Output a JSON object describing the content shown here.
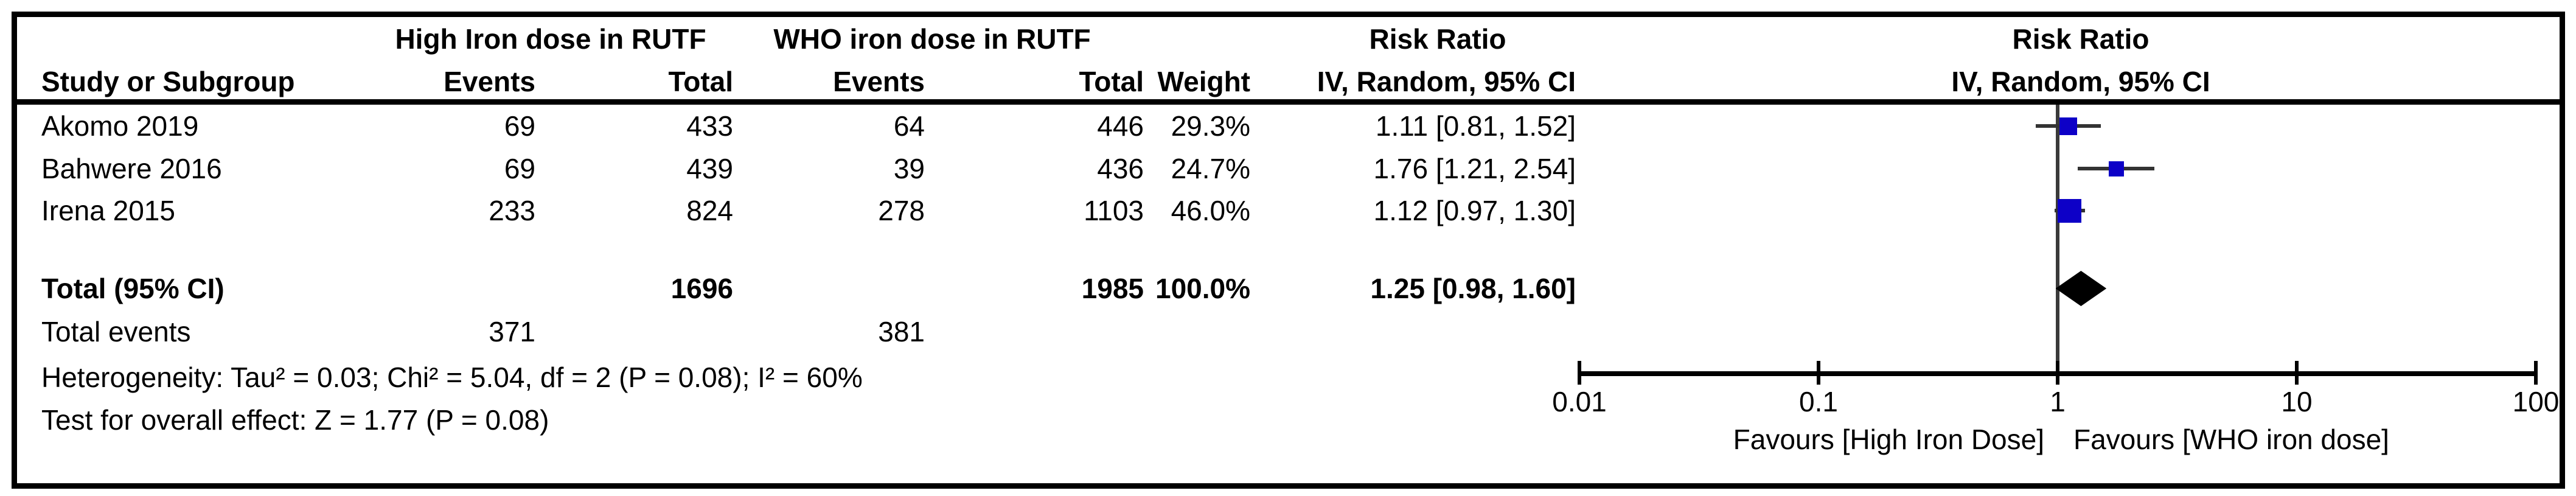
{
  "table": {
    "group1_header": "High Iron dose in RUTF",
    "group2_header": "WHO iron dose in RUTF",
    "effect_header_line1": "Risk Ratio",
    "effect_header_line2": "IV, Random, 95% CI",
    "plot_header_line1": "Risk Ratio",
    "plot_header_line2": "IV, Random, 95% CI",
    "columns": {
      "study": "Study or Subgroup",
      "events1": "Events",
      "total1": "Total",
      "events2": "Events",
      "total2": "Total",
      "weight": "Weight",
      "effect": "IV, Random, 95% CI"
    },
    "rows": [
      {
        "study": "Akomo 2019",
        "e1": "69",
        "t1": "433",
        "e2": "64",
        "t2": "446",
        "weight": "29.3%",
        "effect": "1.11 [0.81, 1.52]"
      },
      {
        "study": "Bahwere 2016",
        "e1": "69",
        "t1": "439",
        "e2": "39",
        "t2": "436",
        "weight": "24.7%",
        "effect": "1.76 [1.21, 2.54]"
      },
      {
        "study": "Irena 2015",
        "e1": "233",
        "t1": "824",
        "e2": "278",
        "t2": "1103",
        "weight": "46.0%",
        "effect": "1.12 [0.97, 1.30]"
      }
    ],
    "total_row": {
      "label": "Total (95% CI)",
      "t1": "1696",
      "t2": "1985",
      "weight": "100.0%",
      "effect": "1.25 [0.98, 1.60]"
    },
    "total_events": {
      "label": "Total events",
      "e1": "371",
      "e2": "381"
    },
    "heterogeneity": "Heterogeneity: Tau² = 0.03; Chi² = 5.04, df = 2 (P = 0.08); I² = 60%",
    "overall_effect": "Test for overall effect: Z = 1.77 (P = 0.08)"
  },
  "chart_data": {
    "type": "forest",
    "x_scale": "log10",
    "x_range": [
      0.01,
      100
    ],
    "axis_ticks": [
      0.01,
      0.1,
      1,
      10,
      100
    ],
    "null_line": 1,
    "studies": [
      {
        "name": "Akomo 2019",
        "rr": 1.11,
        "ci_low": 0.81,
        "ci_high": 1.52,
        "weight_pct": 29.3
      },
      {
        "name": "Bahwere 2016",
        "rr": 1.76,
        "ci_low": 1.21,
        "ci_high": 2.54,
        "weight_pct": 24.7
      },
      {
        "name": "Irena 2015",
        "rr": 1.12,
        "ci_low": 0.97,
        "ci_high": 1.3,
        "weight_pct": 46.0
      }
    ],
    "total": {
      "label": "Total (95% CI)",
      "rr": 1.25,
      "ci_low": 0.98,
      "ci_high": 1.6,
      "weight_pct": 100.0
    },
    "favours_left": "Favours [High Iron Dose]",
    "favours_right": "Favours [WHO iron dose]"
  },
  "colors": {
    "marker_blue": "#0d00c7",
    "diamond_black": "#000000",
    "line_gray": "#333333",
    "text": "#000000"
  }
}
